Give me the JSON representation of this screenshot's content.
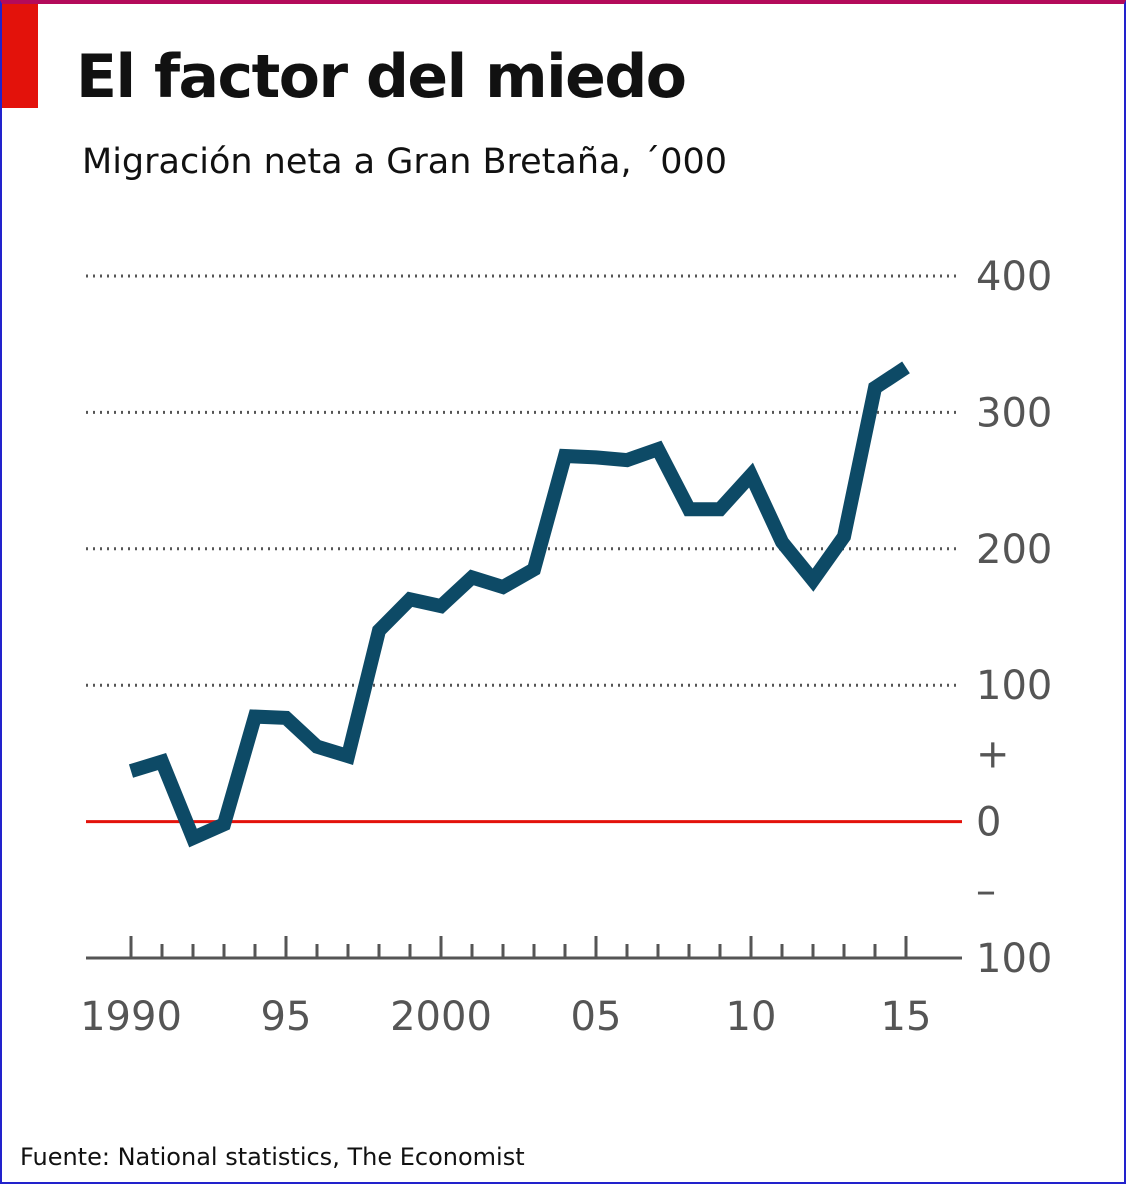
{
  "title": "El factor del miedo",
  "subtitle": "Migración neta a Gran Bretaña, ´000",
  "source": "Fuente: National statistics, The Economist",
  "colors": {
    "accent": "#e3120b",
    "line": "#0d4a66",
    "zero_line": "#e3120b",
    "grid": "#555555",
    "text": "#111111"
  },
  "chart_data": {
    "type": "line",
    "title": "El factor del miedo",
    "subtitle": "Migración neta a Gran Bretaña, ´000",
    "ylim": [
      -100,
      400
    ],
    "y_ticks": [
      "400",
      "300",
      "200",
      "100",
      "+",
      "0",
      "–",
      "100"
    ],
    "y_tick_values": [
      400,
      300,
      200,
      100,
      50,
      0,
      -50,
      -100
    ],
    "x_tick_labels": [
      "1990",
      "95",
      "2000",
      "05",
      "10",
      "15"
    ],
    "x_tick_label_years": [
      1990,
      1995,
      2000,
      2005,
      2010,
      2015
    ],
    "x_minor_ticks": [
      1990,
      1991,
      1992,
      1993,
      1994,
      1995,
      1996,
      1997,
      1998,
      1999,
      2000,
      2001,
      2002,
      2003,
      2004,
      2005,
      2006,
      2007,
      2008,
      2009,
      2010,
      2011,
      2012,
      2013,
      2014,
      2015
    ],
    "grid": "dotted horizontal",
    "y_axis_position": "right",
    "x": [
      1990,
      1991,
      1992,
      1993,
      1994,
      1995,
      1996,
      1997,
      1998,
      1999,
      2000,
      2001,
      2002,
      2003,
      2004,
      2005,
      2006,
      2007,
      2008,
      2009,
      2010,
      2011,
      2012,
      2013,
      2014,
      2015
    ],
    "series": [
      {
        "values": [
          37,
          44,
          -12,
          -2,
          77,
          76,
          55,
          48,
          140,
          163,
          158,
          179,
          172,
          185,
          268,
          267,
          265,
          273,
          229,
          229,
          254,
          205,
          177,
          209,
          318,
          333
        ]
      }
    ]
  }
}
